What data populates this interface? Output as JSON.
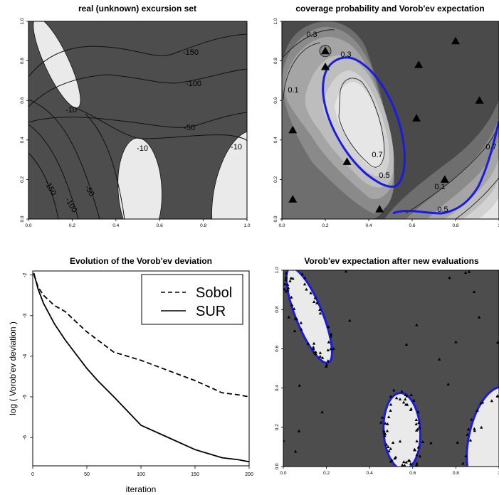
{
  "figure": {
    "panel_titles": [
      "real (unknown) excursion set",
      "coverage probability and Vorob'ev expectation",
      "Evolution of the Vorob'ev deviation",
      "Vorob'ev expectation after new evaluations"
    ],
    "colors": {
      "dark_region": "#4d4d4d",
      "light_region": "#eaeaea",
      "vorobev_contour": "#1b1be0",
      "gray_levels": [
        "#4a4a4a",
        "#6e6e6e",
        "#8a8a8a",
        "#a5a5a5",
        "#bdbdbd",
        "#d2d2d2",
        "#e6e6e6"
      ]
    }
  },
  "chart_data": [
    {
      "type": "heatmap",
      "title": "real (unknown) excursion set",
      "xlim": [
        0,
        1
      ],
      "ylim": [
        0,
        1
      ],
      "x_ticks": [
        "0.0",
        "0.2",
        "0.4",
        "0.6",
        "0.8",
        "1.0"
      ],
      "y_ticks": [
        "0.0",
        "0.2",
        "0.4",
        "0.6",
        "0.8",
        "1.0"
      ],
      "contour_labels": [
        "-150",
        "-100",
        "-50",
        "-10",
        "-10",
        "-10",
        "-150",
        "-100",
        "-50"
      ],
      "excursion_regions": [
        {
          "cx": 0.13,
          "cy": 0.79,
          "rx": 0.055,
          "ry": 0.25,
          "angle_deg": -25
        },
        {
          "cx": 0.51,
          "cy": 0.15,
          "rx": 0.1,
          "ry": 0.26,
          "angle_deg": -3
        },
        {
          "cx": 0.97,
          "cy": 0.14,
          "rx": 0.12,
          "ry": 0.31,
          "angle_deg": 12
        }
      ]
    },
    {
      "type": "heatmap",
      "title": "coverage probability and Vorob'ev expectation",
      "xlim": [
        0,
        1
      ],
      "ylim": [
        0,
        1
      ],
      "x_ticks": [
        "0.0",
        "0.2",
        "0.4",
        "0.6",
        "0.8",
        "1"
      ],
      "y_ticks": [
        "0.0",
        "0.2",
        "0.4",
        "0.6",
        "0.8",
        "1.0"
      ],
      "contour_labels": [
        "0.3",
        "0.3",
        "0.1",
        "0.7",
        "0.5",
        "0.1",
        "0.5",
        "0.7"
      ],
      "design_points": [
        {
          "x": 0.2,
          "y": 0.85
        },
        {
          "x": 0.63,
          "y": 0.78
        },
        {
          "x": 0.8,
          "y": 0.9
        },
        {
          "x": 0.91,
          "y": 0.6
        },
        {
          "x": 0.62,
          "y": 0.51
        },
        {
          "x": 0.05,
          "y": 0.45
        },
        {
          "x": 0.3,
          "y": 0.29
        },
        {
          "x": 0.75,
          "y": 0.2
        },
        {
          "x": 0.05,
          "y": 0.1
        },
        {
          "x": 0.45,
          "y": 0.05
        },
        {
          "x": 0.2,
          "y": 0.77
        }
      ]
    },
    {
      "type": "line",
      "title": "Evolution of the Vorob'ev deviation",
      "xlabel": "iteration",
      "ylabel": "log ( Vorob'ev deviation )",
      "xlim": [
        0,
        200
      ],
      "ylim": [
        -6.7,
        -1.9
      ],
      "x_ticks": [
        0,
        50,
        100,
        150,
        200
      ],
      "y_ticks": [
        -2,
        -3,
        -4,
        -5,
        -6
      ],
      "legend_position": "top-right",
      "series": [
        {
          "name": "Sobol",
          "style": "dashed",
          "x": [
            1,
            5,
            10,
            20,
            30,
            40,
            50,
            60,
            75,
            100,
            125,
            150,
            175,
            190,
            200
          ],
          "y": [
            -1.98,
            -2.3,
            -2.5,
            -2.75,
            -2.9,
            -3.15,
            -3.4,
            -3.6,
            -3.9,
            -4.1,
            -4.35,
            -4.6,
            -4.9,
            -4.95,
            -5.0
          ]
        },
        {
          "name": "SUR",
          "style": "solid",
          "x": [
            1,
            5,
            10,
            20,
            30,
            40,
            50,
            60,
            75,
            100,
            125,
            150,
            175,
            190,
            200
          ],
          "y": [
            -1.95,
            -2.35,
            -2.7,
            -3.2,
            -3.6,
            -3.95,
            -4.3,
            -4.6,
            -5.0,
            -5.7,
            -6.0,
            -6.3,
            -6.5,
            -6.55,
            -6.6
          ]
        }
      ]
    },
    {
      "type": "heatmap",
      "title": "Vorob'ev expectation after new evaluations",
      "xlim": [
        0,
        1
      ],
      "ylim": [
        0,
        1
      ],
      "x_ticks": [
        "0.0",
        "0.2",
        "0.4",
        "0.6",
        "0.8",
        "1"
      ],
      "y_ticks": [
        "0.0",
        "0.2",
        "0.4",
        "0.6",
        "0.8",
        "1.0"
      ],
      "vorobev_regions": [
        {
          "cx": 0.12,
          "cy": 0.77,
          "rx": 0.062,
          "ry": 0.26,
          "angle_deg": -22
        },
        {
          "cx": 0.55,
          "cy": 0.18,
          "rx": 0.085,
          "ry": 0.195,
          "angle_deg": -3
        },
        {
          "cx": 0.97,
          "cy": 0.14,
          "rx": 0.11,
          "ry": 0.27,
          "angle_deg": 12
        }
      ],
      "evaluation_points_description_count": 200
    }
  ]
}
